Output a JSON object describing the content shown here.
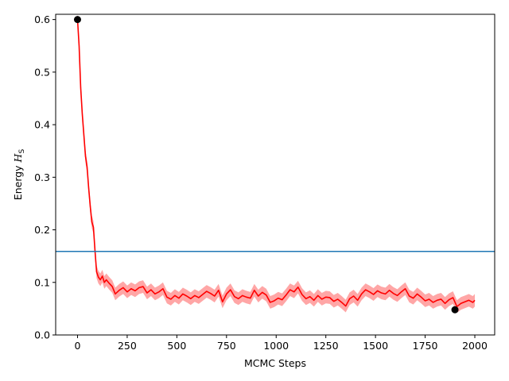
{
  "chart_data": {
    "type": "line",
    "title": "",
    "xlabel": "MCMC Steps",
    "ylabel_prefix": "Energy ",
    "ylabel_symbol": "H",
    "ylabel_subscript": "S",
    "xlim": [
      -110,
      2100
    ],
    "ylim": [
      0.0,
      0.61
    ],
    "xticks": [
      0,
      250,
      500,
      750,
      1000,
      1250,
      1500,
      1750,
      2000
    ],
    "xtick_labels": [
      "0",
      "250",
      "500",
      "750",
      "1000",
      "1250",
      "1500",
      "1750",
      "2000"
    ],
    "yticks": [
      0.0,
      0.1,
      0.2,
      0.3,
      0.4,
      0.5,
      0.6
    ],
    "ytick_labels": [
      "0.0",
      "0.1",
      "0.2",
      "0.3",
      "0.4",
      "0.5",
      "0.6"
    ],
    "grid": false,
    "series": [
      {
        "color": "#ff0000",
        "band_color": "#ff0000",
        "band_halfwidth": 0.012,
        "x": [
          0,
          8,
          16,
          24,
          32,
          40,
          48,
          56,
          64,
          72,
          80,
          88,
          96,
          105,
          115,
          125,
          135,
          145,
          160,
          175,
          190,
          210,
          230,
          250,
          270,
          290,
          310,
          330,
          350,
          370,
          390,
          410,
          430,
          450,
          470,
          490,
          510,
          530,
          550,
          570,
          590,
          610,
          630,
          650,
          670,
          690,
          710,
          730,
          750,
          770,
          790,
          810,
          830,
          850,
          870,
          890,
          910,
          930,
          950,
          970,
          990,
          1010,
          1030,
          1050,
          1070,
          1090,
          1110,
          1130,
          1150,
          1170,
          1190,
          1210,
          1230,
          1250,
          1270,
          1290,
          1310,
          1330,
          1350,
          1370,
          1390,
          1410,
          1430,
          1450,
          1470,
          1490,
          1510,
          1530,
          1550,
          1570,
          1590,
          1610,
          1630,
          1650,
          1670,
          1690,
          1710,
          1730,
          1750,
          1770,
          1790,
          1810,
          1830,
          1850,
          1870,
          1890,
          1910,
          1930,
          1950,
          1970,
          1990,
          2000
        ],
        "y": [
          0.6,
          0.55,
          0.47,
          0.42,
          0.38,
          0.34,
          0.32,
          0.28,
          0.245,
          0.215,
          0.205,
          0.16,
          0.12,
          0.11,
          0.105,
          0.112,
          0.1,
          0.105,
          0.098,
          0.092,
          0.078,
          0.085,
          0.09,
          0.082,
          0.088,
          0.084,
          0.09,
          0.092,
          0.08,
          0.086,
          0.078,
          0.082,
          0.088,
          0.072,
          0.068,
          0.075,
          0.07,
          0.078,
          0.074,
          0.069,
          0.075,
          0.071,
          0.077,
          0.083,
          0.079,
          0.074,
          0.085,
          0.063,
          0.078,
          0.086,
          0.073,
          0.069,
          0.075,
          0.072,
          0.07,
          0.085,
          0.074,
          0.081,
          0.076,
          0.062,
          0.065,
          0.07,
          0.067,
          0.076,
          0.086,
          0.082,
          0.091,
          0.077,
          0.069,
          0.073,
          0.066,
          0.075,
          0.068,
          0.072,
          0.071,
          0.064,
          0.068,
          0.062,
          0.055,
          0.069,
          0.074,
          0.066,
          0.078,
          0.086,
          0.082,
          0.077,
          0.084,
          0.08,
          0.078,
          0.085,
          0.079,
          0.075,
          0.082,
          0.088,
          0.074,
          0.07,
          0.078,
          0.072,
          0.065,
          0.068,
          0.062,
          0.066,
          0.068,
          0.06,
          0.067,
          0.071,
          0.054,
          0.06,
          0.063,
          0.066,
          0.062,
          0.066
        ]
      }
    ],
    "reference_line": {
      "y": 0.159,
      "color": "#1f77b4"
    },
    "markers": [
      {
        "x": 0,
        "y": 0.6,
        "color": "#000000"
      },
      {
        "x": 1900,
        "y": 0.048,
        "color": "#000000"
      }
    ]
  }
}
